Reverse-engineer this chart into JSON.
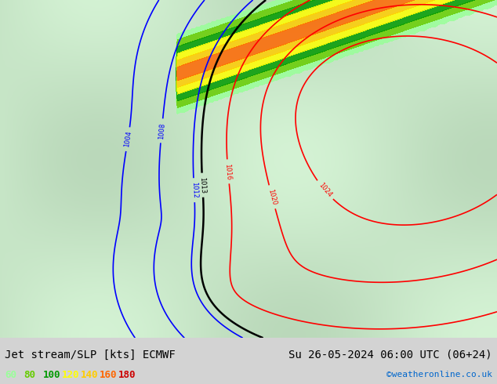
{
  "title_left": "Jet stream/SLP [kts] ECMWF",
  "title_right": "Su 26-05-2024 06:00 UTC (06+24)",
  "credit": "©weatheronline.co.uk",
  "legend_values": [
    "60",
    "80",
    "100",
    "120",
    "140",
    "160",
    "180"
  ],
  "legend_colors": [
    "#99ff99",
    "#66cc00",
    "#009900",
    "#ffff00",
    "#ffcc00",
    "#ff6600",
    "#cc0000"
  ],
  "background_color": "#e8f5e8",
  "map_background": "#c8e6c8",
  "bottom_bar_color": "#d3d3d3",
  "title_font_size": 10,
  "credit_color": "#0066cc",
  "legend_font_size": 9,
  "title_color": "#000000",
  "map_colors": {
    "land_light": "#c8e6c8",
    "land_dark": "#a0c8a0",
    "sea": "#b0d4b0",
    "contour_red": "#ff0000",
    "contour_blue": "#0000ff",
    "contour_black": "#000000",
    "jet_yellow": "#ffff00",
    "jet_orange": "#ff8800",
    "jet_green": "#00aa00"
  }
}
